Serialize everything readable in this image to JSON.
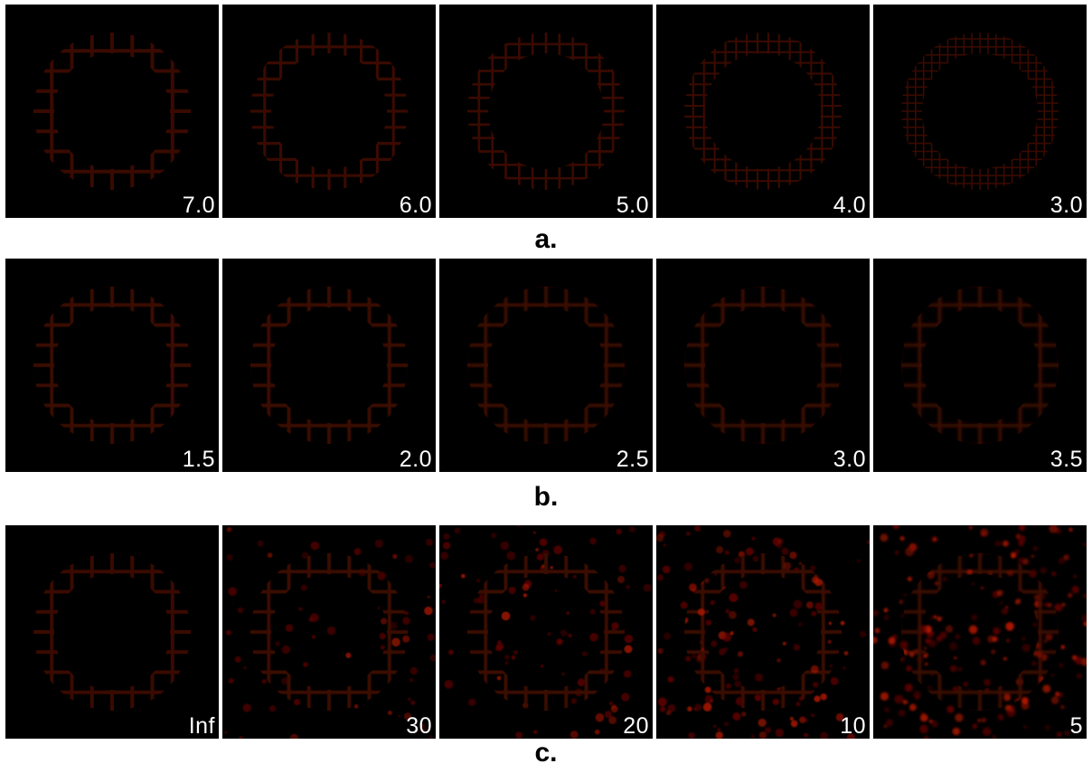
{
  "rows": [
    {
      "label": "a.",
      "panels": [
        {
          "label": "7.0",
          "cells": 8,
          "noise": 0,
          "blur": 0.0
        },
        {
          "label": "6.0",
          "cells": 10,
          "noise": 0,
          "blur": 0.0
        },
        {
          "label": "5.0",
          "cells": 12,
          "noise": 0,
          "blur": 0.0
        },
        {
          "label": "4.0",
          "cells": 15,
          "noise": 0,
          "blur": 0.0
        },
        {
          "label": "3.0",
          "cells": 20,
          "noise": 0,
          "blur": 0.0
        }
      ]
    },
    {
      "label": "b.",
      "panels": [
        {
          "label": "1.5",
          "cells": 8,
          "noise": 0,
          "blur": 0.4
        },
        {
          "label": "2.0",
          "cells": 8,
          "noise": 0,
          "blur": 0.7
        },
        {
          "label": "2.5",
          "cells": 8,
          "noise": 0,
          "blur": 1.0
        },
        {
          "label": "3.0",
          "cells": 8,
          "noise": 0,
          "blur": 1.3
        },
        {
          "label": "3.5",
          "cells": 8,
          "noise": 0,
          "blur": 1.7
        }
      ]
    },
    {
      "label": "c.",
      "panels": [
        {
          "label": "Inf",
          "cells": 8,
          "noise": 0,
          "blur": 0.0
        },
        {
          "label": "30",
          "cells": 8,
          "noise": 0.12,
          "blur": 0.5
        },
        {
          "label": "20",
          "cells": 8,
          "noise": 0.2,
          "blur": 0.6
        },
        {
          "label": "10",
          "cells": 8,
          "noise": 0.35,
          "blur": 0.8
        },
        {
          "label": "5",
          "cells": 8,
          "noise": 0.6,
          "blur": 1.2
        }
      ]
    }
  ],
  "colors": {
    "background": "#000000",
    "ring_core": "#ffe36a",
    "ring_mid": "#ff8c1a",
    "ring_edge": "#c21a00",
    "noise": "#6e0800",
    "label": "#ffffff"
  }
}
